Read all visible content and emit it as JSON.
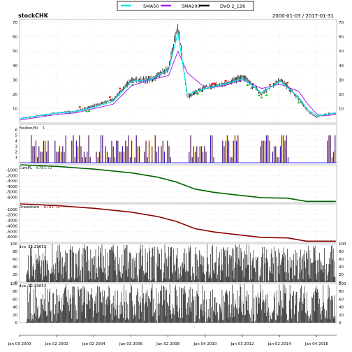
{
  "chart_data": [
    {
      "panel": "price",
      "type": "line",
      "title": "stockCHK",
      "date_range": "2000-01-03 / 2017-01-31",
      "legend": [
        {
          "name": "SMA50",
          "color": "#00e5ee"
        },
        {
          "name": "SMA200",
          "color": "#a020f0"
        },
        {
          "name": "DVO 2_126",
          "color": "#000000"
        }
      ],
      "ylim": [
        0,
        72
      ],
      "yticks": [
        10,
        20,
        30,
        40,
        50,
        60,
        70
      ],
      "series_note": "candlesticks with green/red trade markers",
      "x": [
        "2000-01",
        "2001-01",
        "2002-01",
        "2003-01",
        "2004-01",
        "2005-01",
        "2006-01",
        "2007-01",
        "2008-01",
        "2008-07",
        "2009-01",
        "2010-01",
        "2011-01",
        "2012-01",
        "2013-01",
        "2014-01",
        "2015-01",
        "2015-07",
        "2016-01",
        "2016-07",
        "2017-01"
      ],
      "close": [
        3,
        5,
        7,
        8,
        12,
        16,
        30,
        30,
        38,
        68,
        18,
        25,
        27,
        32,
        20,
        30,
        17,
        8,
        4,
        6,
        7
      ],
      "sma50": [
        3,
        5,
        7,
        8,
        11,
        15,
        29,
        30,
        37,
        63,
        20,
        24,
        27,
        31,
        21,
        29,
        18,
        9,
        5,
        6,
        7
      ],
      "sma200": [
        2,
        4,
        6,
        7,
        10,
        13,
        26,
        30,
        33,
        50,
        35,
        24,
        26,
        30,
        24,
        27,
        22,
        13,
        6,
        5,
        6
      ]
    },
    {
      "panel": "position",
      "type": "bar",
      "label": "Position/fill",
      "value_label": "1",
      "ylim": [
        0,
        7
      ],
      "yticks": [
        1,
        2,
        3,
        4,
        5,
        6
      ]
    },
    {
      "panel": "cumpl",
      "type": "line",
      "label": "CumPL",
      "value_label": "-6781.72",
      "color": "#006400",
      "ylim": [
        -7000,
        0
      ],
      "yticks": [
        -1000,
        -2000,
        -3000,
        -4000,
        -5000,
        -6000
      ],
      "x": [
        "2000-01",
        "2002-01",
        "2004-01",
        "2006-01",
        "2007-06",
        "2008-06",
        "2009-06",
        "2010-06",
        "2011-06",
        "2013-01",
        "2014-06",
        "2015-06",
        "2017-01"
      ],
      "values": [
        0,
        -300,
        -800,
        -1500,
        -2300,
        -3200,
        -4500,
        -5100,
        -5500,
        -6100,
        -6200,
        -6780,
        -6782
      ]
    },
    {
      "panel": "drawdown",
      "type": "line",
      "label": "Drawdown",
      "value_label": "-6781.72",
      "color": "#8b0000",
      "ylim": [
        -7000,
        0
      ],
      "yticks": [
        -1000,
        -2000,
        -3000,
        -4000,
        -5000,
        -6000
      ],
      "x": [
        "2000-01",
        "2002-01",
        "2004-01",
        "2006-01",
        "2007-06",
        "2008-06",
        "2009-06",
        "2010-06",
        "2011-06",
        "2013-01",
        "2014-06",
        "2015-06",
        "2017-01"
      ],
      "values": [
        0,
        -300,
        -800,
        -1500,
        -2300,
        -3200,
        -4500,
        -5100,
        -5500,
        -6100,
        -6200,
        -6780,
        -6782
      ]
    },
    {
      "panel": "dvo1",
      "type": "bar",
      "label": "dvo",
      "value_label": "32.29652",
      "ylim": [
        0,
        100
      ],
      "yticks": [
        0,
        20,
        40,
        60,
        80,
        100
      ]
    },
    {
      "panel": "dvo2",
      "type": "bar",
      "label": "dvo",
      "value_label": "32.29652",
      "ylim": [
        0,
        100
      ],
      "yticks": [
        0,
        20,
        40,
        60,
        80,
        100
      ]
    }
  ],
  "x_axis": {
    "start": "2000-01-03",
    "end": "2017-01-31",
    "labels": [
      "Jan 03 2000",
      "Jan 02 2002",
      "Jan 02 2004",
      "Jan 03 2006",
      "Jan 02 2008",
      "Jan 04 2010",
      "Jan 03 2012",
      "Jan 02 2014",
      "Jan 04 2016"
    ],
    "label_dates": [
      "2000-01-03",
      "2002-01-02",
      "2004-01-02",
      "2006-01-03",
      "2008-01-02",
      "2010-01-04",
      "2012-01-03",
      "2014-01-02",
      "2016-01-04"
    ]
  },
  "colors": {
    "grid": "#d9d9d9",
    "frame": "#9a9a9a",
    "candle": "#000000",
    "buy_marker": "#00cc00",
    "sell_marker": "#ff0000",
    "position_bar": "#0000ff",
    "position_fill": "#ffa500",
    "dvo_bar": "#000000"
  }
}
